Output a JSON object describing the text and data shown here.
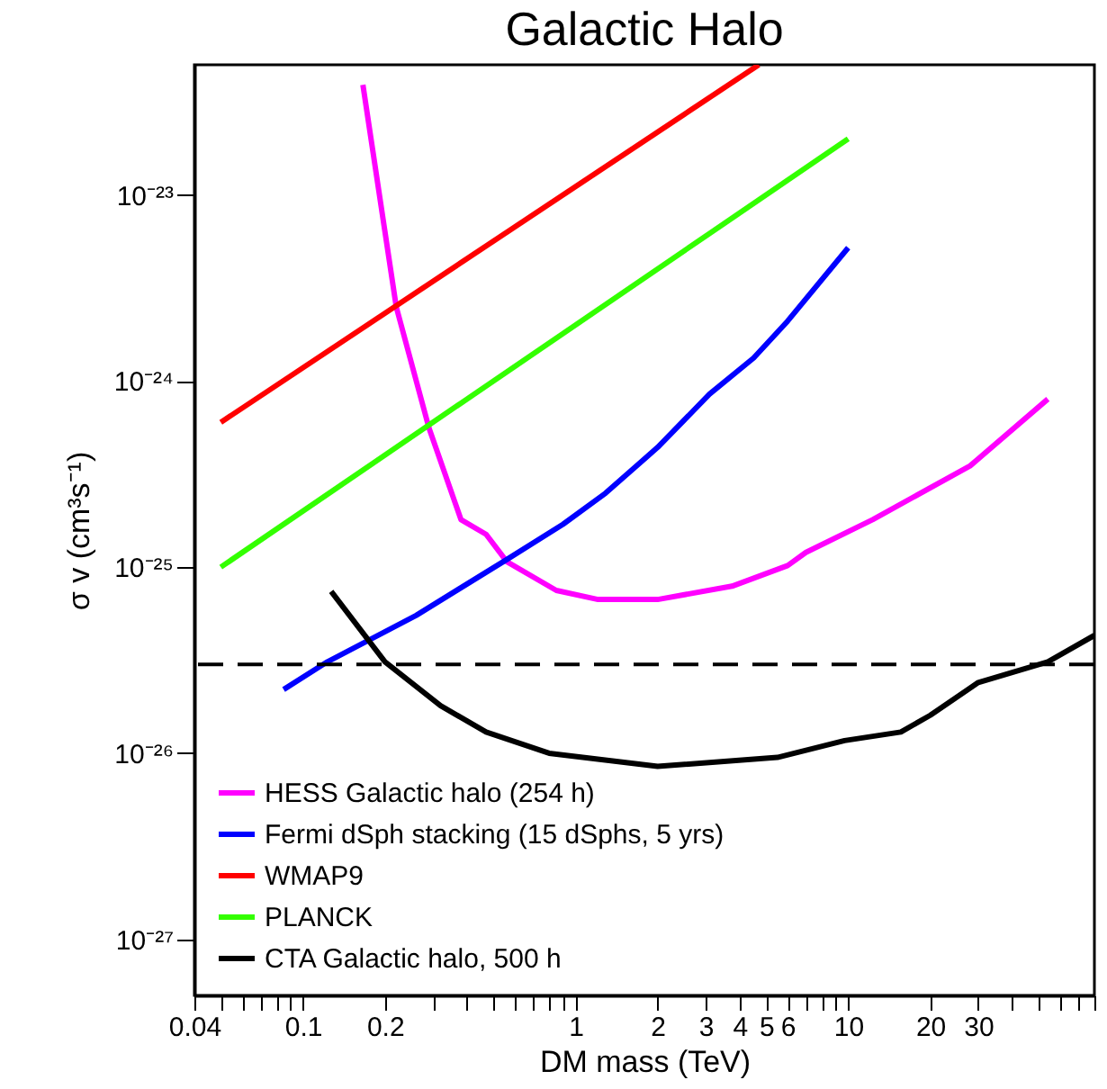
{
  "chart_data": {
    "type": "line",
    "title": "Galactic Halo",
    "xlabel": "DM mass (TeV)",
    "ylabel": "σ v (cm³s⁻¹)",
    "log": "xy",
    "grid": false,
    "legend": "bottom left",
    "marker": "none",
    "xlim": [
      0.04,
      80
    ],
    "ylim": [
      5e-28,
      5e-23
    ],
    "xticks": [
      0.04,
      {
        "value": 0.05,
        "label": null
      },
      {
        "value": 0.06,
        "label": null
      },
      {
        "value": 0.07,
        "label": null
      },
      {
        "value": 0.08,
        "label": null
      },
      {
        "value": 0.09,
        "label": null
      },
      0.1,
      0.2,
      {
        "value": 0.3,
        "label": null
      },
      {
        "value": 0.4,
        "label": null
      },
      {
        "value": 0.5,
        "label": null
      },
      {
        "value": 0.6,
        "label": null
      },
      {
        "value": 0.7,
        "label": null
      },
      {
        "value": 0.8,
        "label": null
      },
      {
        "value": 0.9,
        "label": null
      },
      1,
      2,
      3,
      4,
      5,
      6,
      {
        "value": 7,
        "label": null
      },
      {
        "value": 8,
        "label": null
      },
      {
        "value": 9,
        "label": null
      },
      10,
      20,
      30,
      {
        "value": 40,
        "label": null
      },
      {
        "value": 50,
        "label": null
      },
      {
        "value": 60,
        "label": null
      },
      {
        "value": 70,
        "label": null
      },
      {
        "value": 80,
        "label": null
      }
    ],
    "yticks": [
      {
        "value": 1e-27,
        "label": "10⁻²⁷"
      },
      {
        "value": 1e-26,
        "label": "10⁻²⁶"
      },
      {
        "value": 1e-25,
        "label": "10⁻²⁵"
      },
      {
        "value": 1e-24,
        "label": "10⁻²⁴"
      },
      {
        "value": 1e-23,
        "label": "10⁻²³"
      }
    ],
    "series": [
      {
        "name": "HESS Galactic halo (254 h)",
        "color": "#ff00ff",
        "x": [
          0.166,
          0.22,
          0.29,
          0.38,
          0.47,
          0.56,
          0.85,
          1.21,
          2.0,
          3.75,
          6.0,
          7.0,
          12.3,
          28,
          54
        ],
        "values": [
          3.9e-23,
          2.5e-24,
          5.6e-25,
          1.8e-25,
          1.5e-25,
          1.07e-25,
          7.5e-26,
          6.7e-26,
          6.7e-26,
          7.9e-26,
          1.02e-25,
          1.2e-25,
          1.8e-25,
          3.5e-25,
          8e-25
        ]
      },
      {
        "name": "Fermi dSph stacking (15 dSphs, 5 yrs)",
        "color": "#0000ff",
        "x": [
          0.085,
          0.123,
          0.26,
          0.56,
          0.9,
          1.29,
          2.0,
          3.1,
          4.5,
          6.0,
          10
        ],
        "values": [
          2.2e-26,
          3.1e-26,
          5.5e-26,
          1.1e-25,
          1.7e-25,
          2.5e-25,
          4.4e-25,
          8.5e-25,
          1.33e-24,
          2.1e-24,
          5.2e-24
        ]
      },
      {
        "name": "WMAP9",
        "color": "#ff0000",
        "x": [
          0.05,
          4.7
        ],
        "values": [
          6e-25,
          5e-23
        ]
      },
      {
        "name": "PLANCK",
        "color": "#33ff00",
        "x": [
          0.05,
          10
        ],
        "values": [
          1e-25,
          2e-23
        ]
      },
      {
        "name": "CTA Galactic halo, 500 h",
        "color": "#000000",
        "x": [
          0.127,
          0.2,
          0.32,
          0.47,
          0.8,
          2.0,
          5.5,
          9.7,
          15.6,
          20,
          30,
          54,
          80
        ],
        "values": [
          7.4e-26,
          3.1e-26,
          1.8e-26,
          1.3e-26,
          1e-26,
          8.5e-27,
          9.5e-27,
          1.17e-26,
          1.3e-26,
          1.6e-26,
          2.4e-26,
          3.1e-26,
          4.3e-26
        ]
      }
    ],
    "ref_lines": [
      {
        "axis": "y",
        "value": 3e-26,
        "color": "#000000",
        "line_style": "dashed"
      }
    ]
  }
}
